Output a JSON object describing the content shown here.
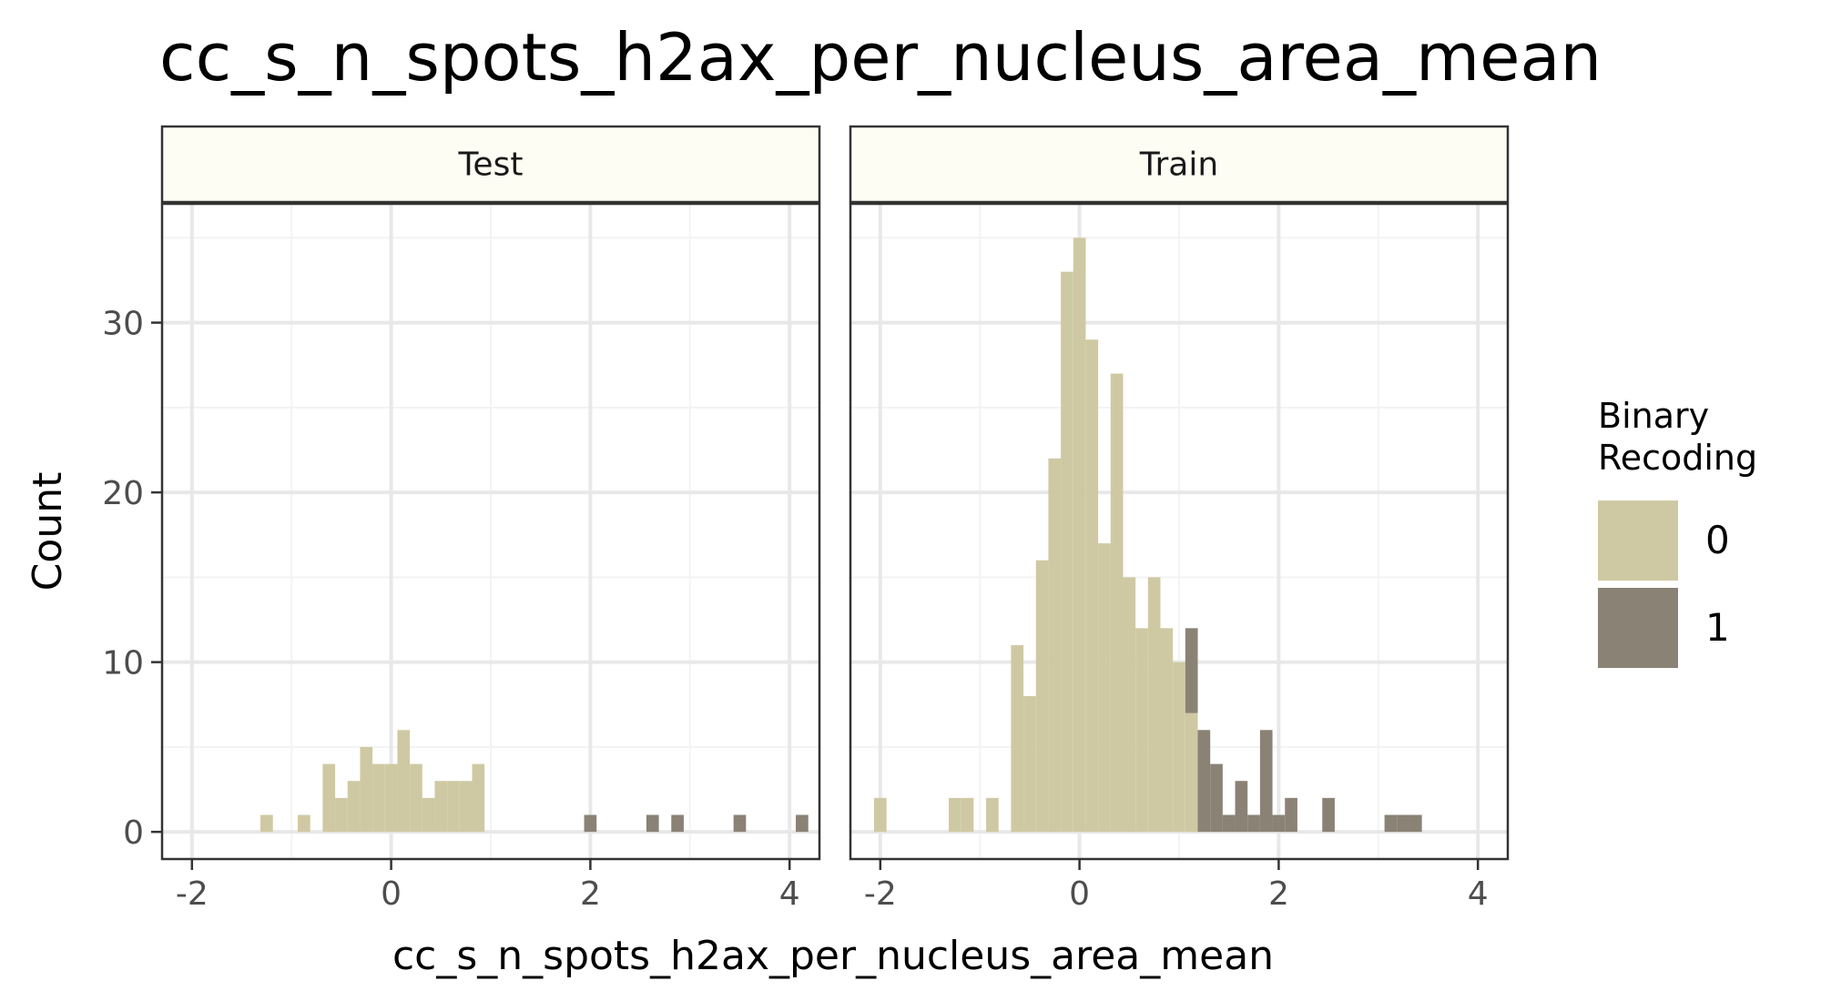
{
  "chart_data": {
    "type": "bar",
    "subtype": "faceted histogram",
    "title": "cc_s_n_spots_h2ax_per_nucleus_area_mean",
    "xlabel": "cc_s_n_spots_h2ax_per_nucleus_area_mean",
    "ylabel": "Count",
    "xlim": [
      -2.3,
      4.3
    ],
    "ylim": [
      -1.6,
      37.0
    ],
    "x_ticks": [
      "-2",
      "0",
      "2",
      "4"
    ],
    "y_ticks": [
      "0",
      "10",
      "20",
      "30"
    ],
    "x_tick_values": [
      -2,
      0,
      2,
      4
    ],
    "y_tick_values": [
      0,
      10,
      20,
      30
    ],
    "bin_width": 0.125,
    "grid": true,
    "legend": {
      "title_lines": [
        "Binary",
        "Recoding"
      ],
      "position": "right",
      "entries": [
        {
          "label": "0",
          "color": "#cfc9a3"
        },
        {
          "label": "1",
          "color": "#8a8275"
        }
      ]
    },
    "colors": {
      "group_0": "#cfc9a3",
      "group_1": "#8a8275",
      "strip_fill": "#fdfdf4",
      "grid_major": "#e8e8e8",
      "grid_minor": "#f3f3f3",
      "panel_border": "#333333",
      "tick_label": "#4d4d4d"
    },
    "panels": [
      {
        "label": "Test",
        "series": [
          {
            "name": "0",
            "bins": [
              {
                "x": -1.25,
                "count": 1
              },
              {
                "x": -0.875,
                "count": 1
              },
              {
                "x": -0.625,
                "count": 4
              },
              {
                "x": -0.5,
                "count": 2
              },
              {
                "x": -0.375,
                "count": 3
              },
              {
                "x": -0.25,
                "count": 5
              },
              {
                "x": -0.125,
                "count": 4
              },
              {
                "x": 0.0,
                "count": 4
              },
              {
                "x": 0.125,
                "count": 6
              },
              {
                "x": 0.25,
                "count": 4
              },
              {
                "x": 0.375,
                "count": 2
              },
              {
                "x": 0.5,
                "count": 3
              },
              {
                "x": 0.625,
                "count": 3
              },
              {
                "x": 0.75,
                "count": 3
              },
              {
                "x": 0.875,
                "count": 4
              }
            ]
          },
          {
            "name": "1",
            "bins": [
              {
                "x": 2.0,
                "count": 1
              },
              {
                "x": 2.625,
                "count": 1
              },
              {
                "x": 2.875,
                "count": 1
              },
              {
                "x": 3.5,
                "count": 1
              },
              {
                "x": 4.125,
                "count": 1
              }
            ]
          }
        ]
      },
      {
        "label": "Train",
        "series": [
          {
            "name": "0",
            "bins": [
              {
                "x": -2.0,
                "count": 2
              },
              {
                "x": -1.25,
                "count": 2
              },
              {
                "x": -1.125,
                "count": 2
              },
              {
                "x": -0.875,
                "count": 2
              },
              {
                "x": -0.625,
                "count": 11
              },
              {
                "x": -0.5,
                "count": 8
              },
              {
                "x": -0.375,
                "count": 16
              },
              {
                "x": -0.25,
                "count": 22
              },
              {
                "x": -0.125,
                "count": 33
              },
              {
                "x": 0.0,
                "count": 35
              },
              {
                "x": 0.125,
                "count": 29
              },
              {
                "x": 0.25,
                "count": 17
              },
              {
                "x": 0.375,
                "count": 27
              },
              {
                "x": 0.5,
                "count": 15
              },
              {
                "x": 0.625,
                "count": 12
              },
              {
                "x": 0.75,
                "count": 15
              },
              {
                "x": 0.875,
                "count": 12
              },
              {
                "x": 1.0,
                "count": 10
              },
              {
                "x": 1.125,
                "count": 7
              }
            ]
          },
          {
            "name": "1",
            "bins": [
              {
                "x": 1.125,
                "count": 5
              },
              {
                "x": 1.25,
                "count": 6
              },
              {
                "x": 1.375,
                "count": 4
              },
              {
                "x": 1.5,
                "count": 1
              },
              {
                "x": 1.625,
                "count": 3
              },
              {
                "x": 1.75,
                "count": 1
              },
              {
                "x": 1.875,
                "count": 6
              },
              {
                "x": 2.0,
                "count": 1
              },
              {
                "x": 2.125,
                "count": 2
              },
              {
                "x": 2.5,
                "count": 2
              },
              {
                "x": 3.125,
                "count": 1
              },
              {
                "x": 3.25,
                "count": 1
              },
              {
                "x": 3.375,
                "count": 1
              }
            ]
          }
        ]
      }
    ]
  }
}
